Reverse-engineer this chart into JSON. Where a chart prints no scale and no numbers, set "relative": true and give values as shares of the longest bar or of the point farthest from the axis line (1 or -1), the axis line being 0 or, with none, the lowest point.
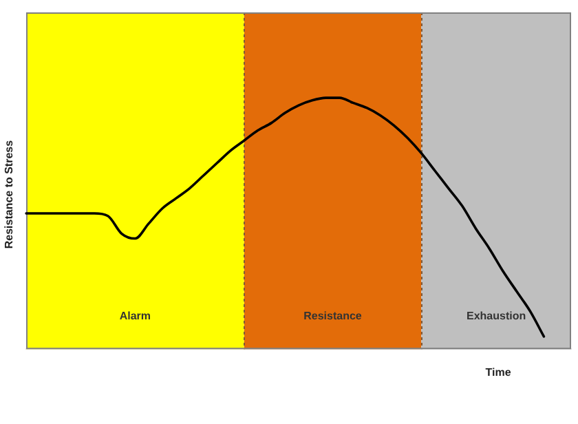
{
  "chart_data": {
    "type": "line",
    "xlabel": "Time",
    "ylabel": "Resistance to Stress",
    "relative": true,
    "legend": false,
    "marker": "none",
    "line_style": "solid",
    "categories": [
      null,
      null,
      null,
      null,
      null,
      null,
      null,
      null,
      null,
      null,
      null,
      null,
      null,
      null,
      null,
      null,
      null,
      null,
      null,
      null,
      null,
      null,
      null,
      null,
      null,
      null,
      null,
      null,
      null,
      null,
      null,
      null,
      null,
      null,
      null,
      null,
      null,
      null,
      null,
      null,
      null
    ],
    "series": [
      {
        "color": "#000000",
        "values": [
          0.54,
          0.54,
          0.54,
          0.54,
          0.54,
          0.54,
          0.53,
          0.46,
          0.44,
          0.5,
          0.56,
          0.6,
          0.64,
          0.69,
          0.74,
          0.79,
          0.83,
          0.87,
          0.9,
          0.94,
          0.97,
          0.99,
          1,
          1,
          0.98,
          0.96,
          0.93,
          0.89,
          0.84,
          0.78,
          0.71,
          0.64,
          0.57,
          0.48,
          0.4,
          0.31,
          0.23,
          0.15,
          0.05,
          null,
          null
        ]
      }
    ],
    "annotations": [
      "Alarm",
      "Resistance",
      "Exhaustion"
    ]
  }
}
